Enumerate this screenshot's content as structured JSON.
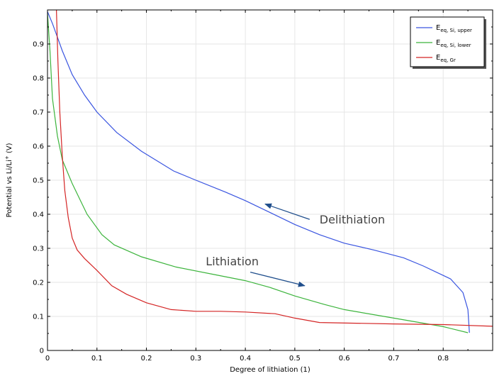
{
  "chart_data": {
    "type": "line",
    "xlabel": "Degree of lithiation (1)",
    "ylabel_main": "Potential vs Li/Li",
    "ylabel_sup": "+",
    "ylabel_unit": " (V)",
    "xlim": [
      0,
      0.9
    ],
    "ylim": [
      0,
      1.0
    ],
    "xticks": [
      0,
      0.1,
      0.2,
      0.3,
      0.4,
      0.5,
      0.6,
      0.7,
      0.8
    ],
    "xtick_labels": [
      "0",
      "0.1",
      "0.2",
      "0.3",
      "0.4",
      "0.5",
      "0.6",
      "0.7",
      "0.8"
    ],
    "yticks": [
      0,
      0.1,
      0.2,
      0.3,
      0.4,
      0.5,
      0.6,
      0.7,
      0.8,
      0.9
    ],
    "ytick_labels": [
      "0",
      "0.1",
      "0.2",
      "0.3",
      "0.4",
      "0.5",
      "0.6",
      "0.7",
      "0.8",
      "0.9"
    ],
    "grid": true,
    "legend_position": "top-right",
    "series": [
      {
        "key": "si-upper",
        "legend_main": "E",
        "legend_sub": "eq, Si, upper",
        "color": "#3a55e0",
        "x": [
          0.0,
          0.01,
          0.02,
          0.03,
          0.05,
          0.075,
          0.1,
          0.14,
          0.19,
          0.255,
          0.3,
          0.36,
          0.4,
          0.45,
          0.5,
          0.55,
          0.6,
          0.66,
          0.72,
          0.76,
          0.815,
          0.84,
          0.85,
          0.853
        ],
        "y": [
          0.995,
          0.96,
          0.92,
          0.88,
          0.81,
          0.75,
          0.7,
          0.64,
          0.585,
          0.527,
          0.5,
          0.465,
          0.44,
          0.405,
          0.37,
          0.34,
          0.315,
          0.295,
          0.272,
          0.248,
          0.21,
          0.17,
          0.12,
          0.052
        ]
      },
      {
        "key": "si-lower",
        "legend_main": "E",
        "legend_sub": "eq, Si, lower",
        "color": "#3cb43c",
        "x": [
          0.0,
          0.005,
          0.01,
          0.02,
          0.03,
          0.05,
          0.08,
          0.11,
          0.135,
          0.19,
          0.26,
          0.34,
          0.4,
          0.45,
          0.5,
          0.56,
          0.6,
          0.7,
          0.8,
          0.85
        ],
        "y": [
          0.99,
          0.88,
          0.74,
          0.63,
          0.56,
          0.49,
          0.4,
          0.34,
          0.31,
          0.275,
          0.245,
          0.222,
          0.205,
          0.185,
          0.16,
          0.135,
          0.12,
          0.095,
          0.07,
          0.052
        ]
      },
      {
        "key": "gr",
        "legend_main": "E",
        "legend_sub": "eq, Gr",
        "color": "#d42424",
        "x": [
          0.018,
          0.021,
          0.025,
          0.03,
          0.035,
          0.042,
          0.05,
          0.06,
          0.075,
          0.1,
          0.13,
          0.16,
          0.2,
          0.25,
          0.3,
          0.35,
          0.4,
          0.46,
          0.5,
          0.55,
          0.7,
          0.8,
          0.9
        ],
        "y": [
          1.0,
          0.85,
          0.7,
          0.57,
          0.47,
          0.39,
          0.33,
          0.295,
          0.27,
          0.235,
          0.19,
          0.165,
          0.14,
          0.12,
          0.115,
          0.115,
          0.113,
          0.108,
          0.095,
          0.082,
          0.078,
          0.076,
          0.071
        ]
      }
    ],
    "annotations": [
      {
        "key": "delithiation",
        "text": "Delithiation",
        "text_x": 0.55,
        "text_y": 0.385,
        "arrow_from": [
          0.53,
          0.385
        ],
        "arrow_to": [
          0.44,
          0.43
        ],
        "color": "#1f4e8c"
      },
      {
        "key": "lithiation",
        "text": "Lithiation",
        "text_x": 0.32,
        "text_y": 0.262,
        "arrow_from": [
          0.41,
          0.23
        ],
        "arrow_to": [
          0.52,
          0.19
        ],
        "color": "#1f4e8c"
      }
    ]
  }
}
